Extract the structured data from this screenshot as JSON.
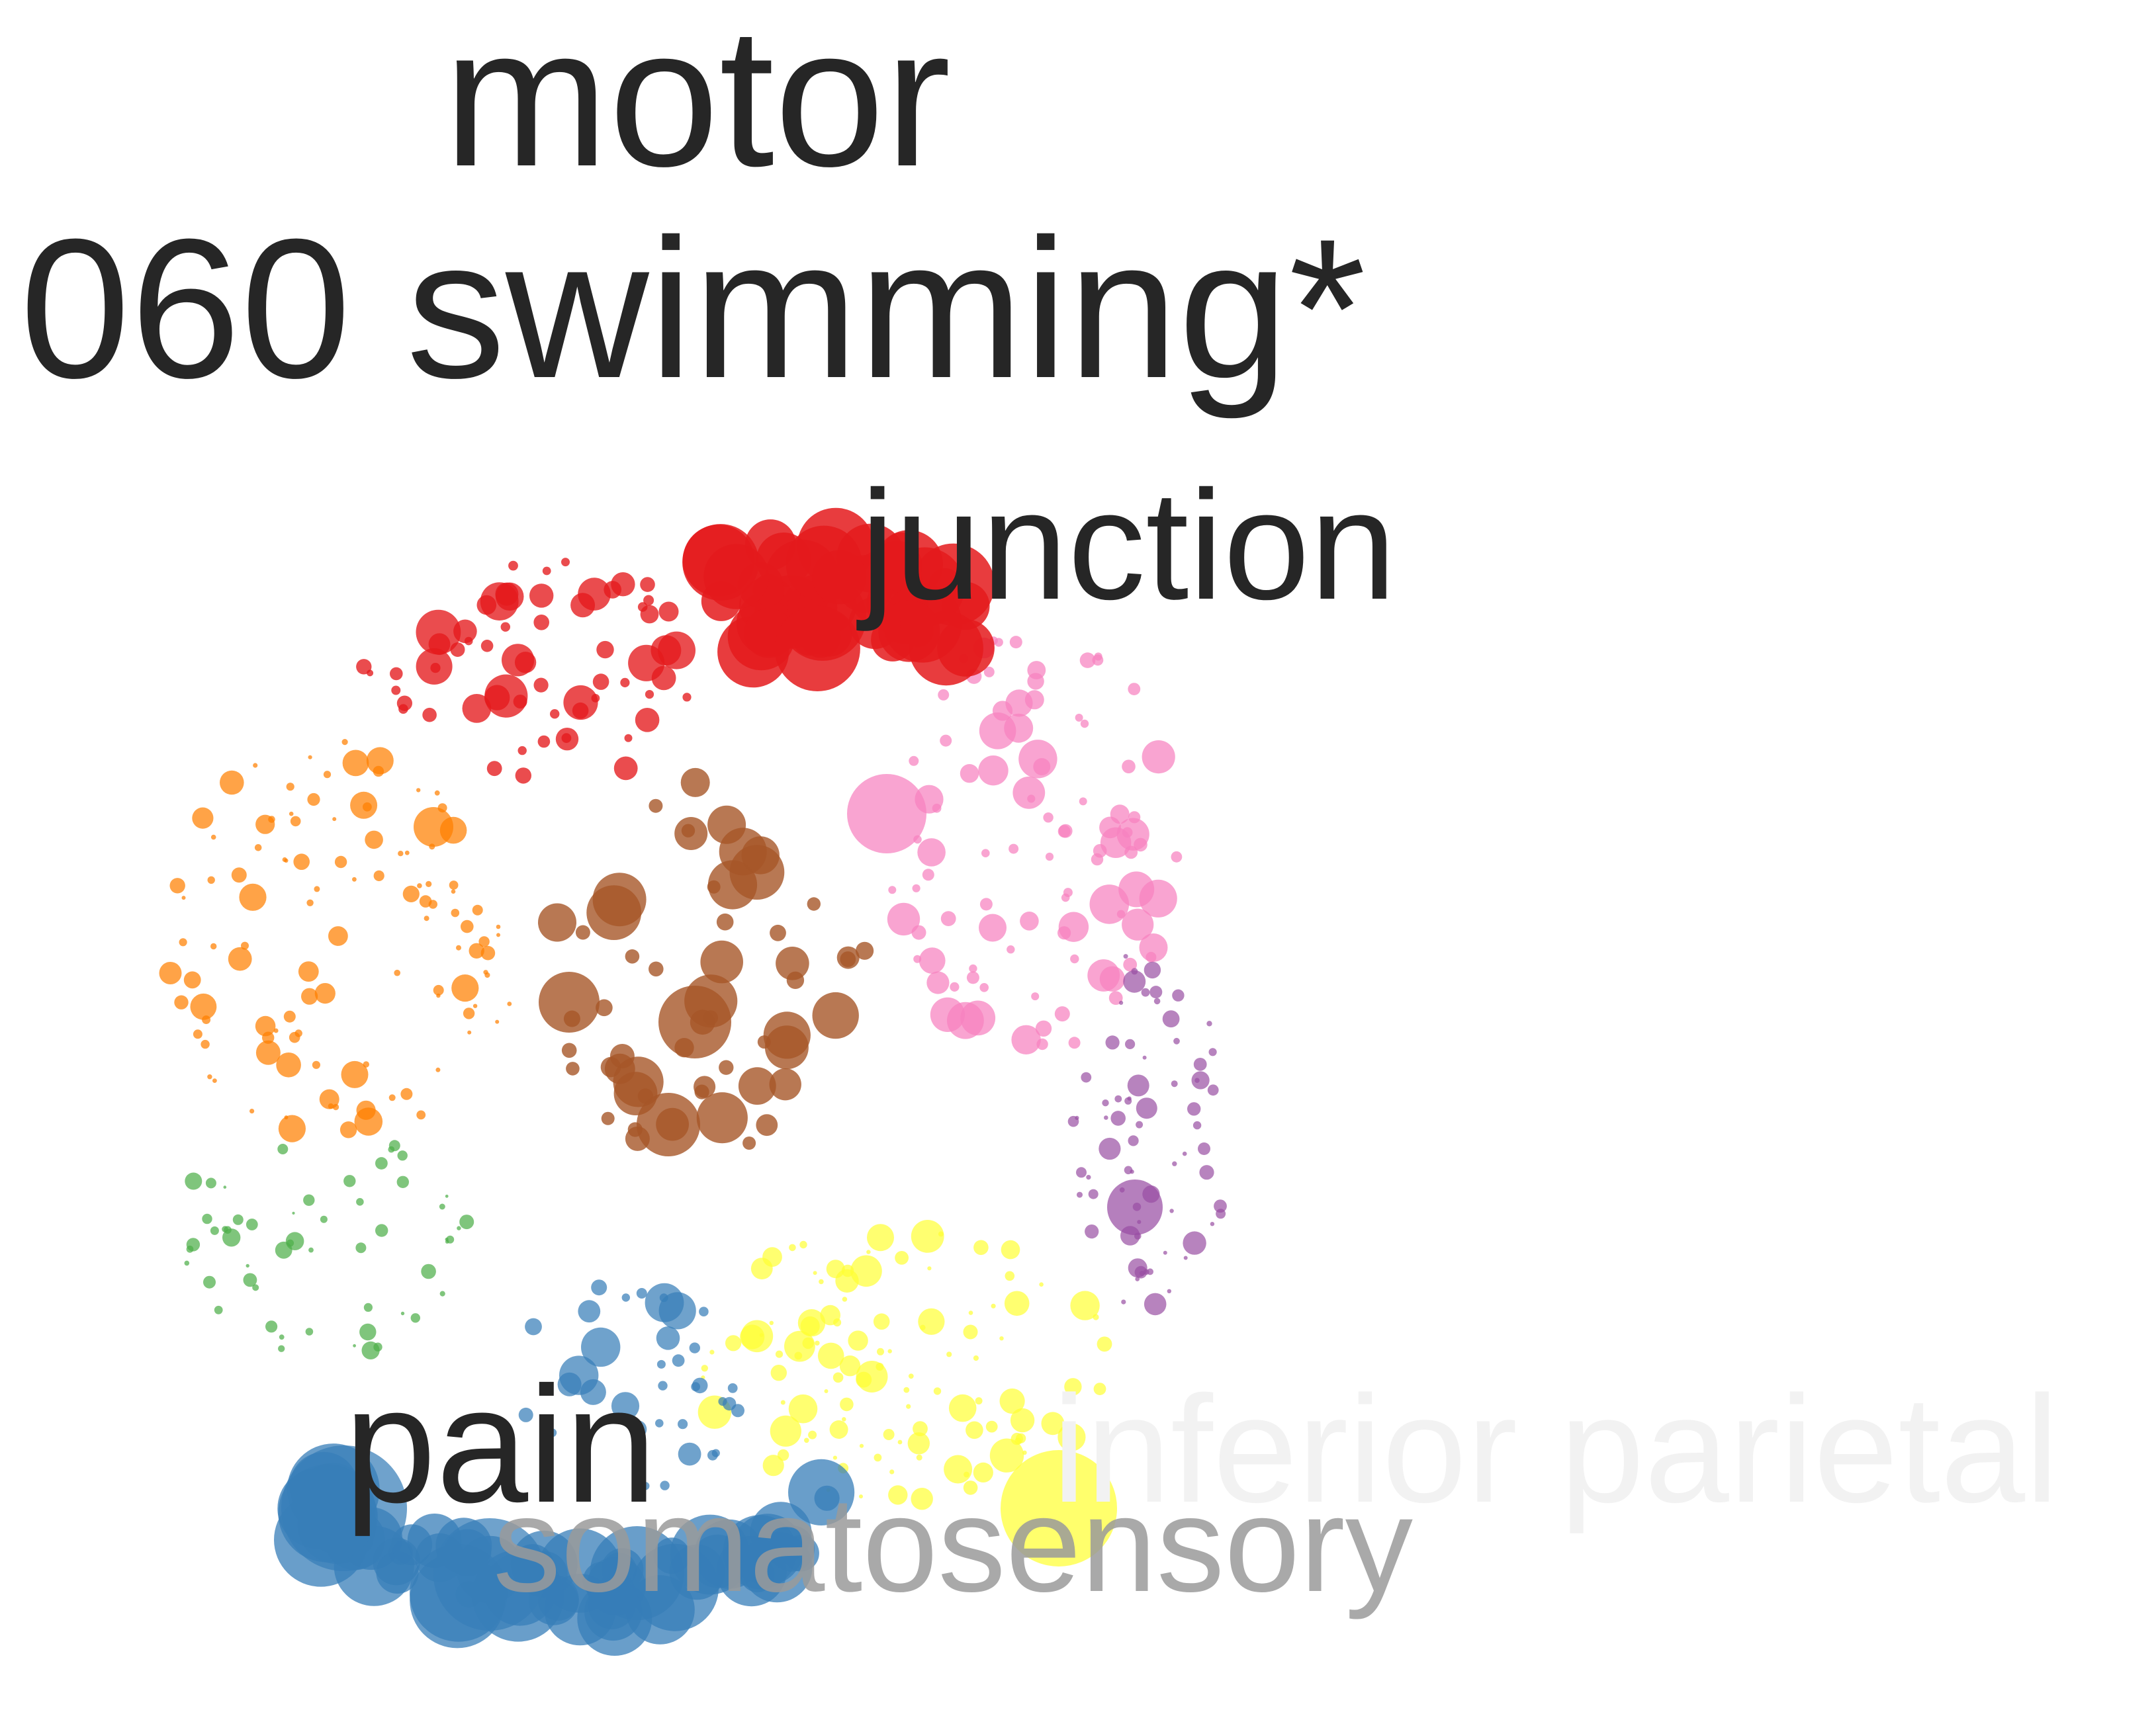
{
  "labels": {
    "motor": "motor",
    "swimming": "060 swimming*",
    "junction": "junction",
    "pain": "pain",
    "somatosensory": "somatosensory",
    "inferior_parietal": "inferior parietal"
  },
  "label_colors": {
    "motor": "#262626",
    "swimming": "#262626",
    "junction": "#262626",
    "pain": "#262626",
    "somatosensory": "#9a9a9a",
    "inferior_parietal": "#f2f2f2"
  },
  "clusters": [
    {
      "name": "red",
      "color": "#e41a1c"
    },
    {
      "name": "pink",
      "color": "#f781bf"
    },
    {
      "name": "orange",
      "color": "#ff7f00"
    },
    {
      "name": "brown",
      "color": "#a65628"
    },
    {
      "name": "purple",
      "color": "#984ea3"
    },
    {
      "name": "green",
      "color": "#4daf4a"
    },
    {
      "name": "yellow",
      "color": "#ffff33"
    },
    {
      "name": "blue",
      "color": "#377eb8"
    }
  ]
}
